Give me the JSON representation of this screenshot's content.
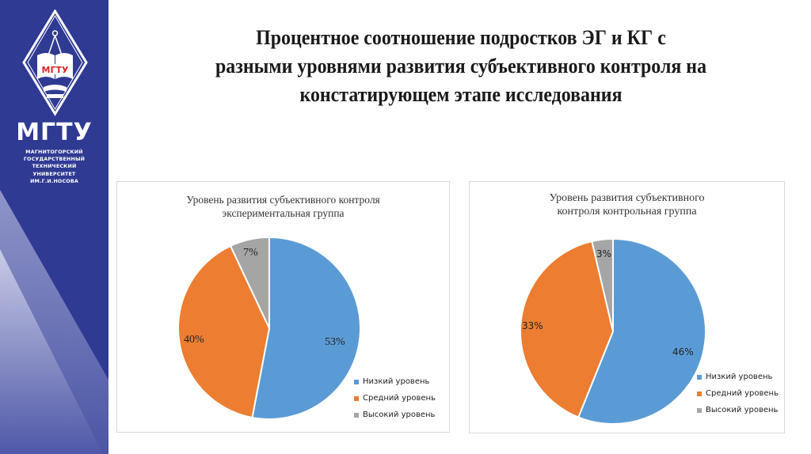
{
  "sidebar": {
    "logo_emblem_text": "МГТУ",
    "logo_name": "МГТУ",
    "logo_subtitle": [
      "МАГНИТОГОРСКИЙ",
      "ГОСУДАРСТВЕННЫЙ",
      "ТЕХНИЧЕСКИЙ",
      "УНИВЕРСИТЕТ",
      "ИМ.Г.И.НОСОВА"
    ],
    "colors": {
      "background": "#2f3a93",
      "emblem_red": "#d9262b"
    }
  },
  "header": {
    "title_lines": [
      "Процентное соотношение подростков ЭГ и  КГ с",
      "разными уровнями развития субъективного контроля на",
      "констатирующем этапе исследования"
    ]
  },
  "chart_data": [
    {
      "type": "pie",
      "title": "Уровень развития субъективного контроля экспериментальная группа",
      "title_lines": [
        "Уровень развития субъективного контроля",
        "экспериментальная группа"
      ],
      "categories": [
        "Низкий уровень",
        "Средний уровень",
        "Высокий уровень"
      ],
      "values": [
        53,
        40,
        7
      ],
      "labels": [
        "53%",
        "40%",
        "7%"
      ],
      "colors": [
        "#5b9bd5",
        "#ed7d31",
        "#a5a5a5"
      ],
      "legend_position": "bottom-right"
    },
    {
      "type": "pie",
      "title": "Уровень развития субъективного контроля контрольная группа",
      "title_lines": [
        "Уровень развития субъективного",
        "контроля контрольная группа"
      ],
      "categories": [
        "Низкий уровень",
        "Средний уровень",
        "Высокий уровень"
      ],
      "values": [
        46,
        33,
        3
      ],
      "labels": [
        "46%",
        "33%",
        "3%"
      ],
      "colors": [
        "#5b9bd5",
        "#ed7d31",
        "#a5a5a5"
      ],
      "legend_position": "bottom-right"
    }
  ]
}
